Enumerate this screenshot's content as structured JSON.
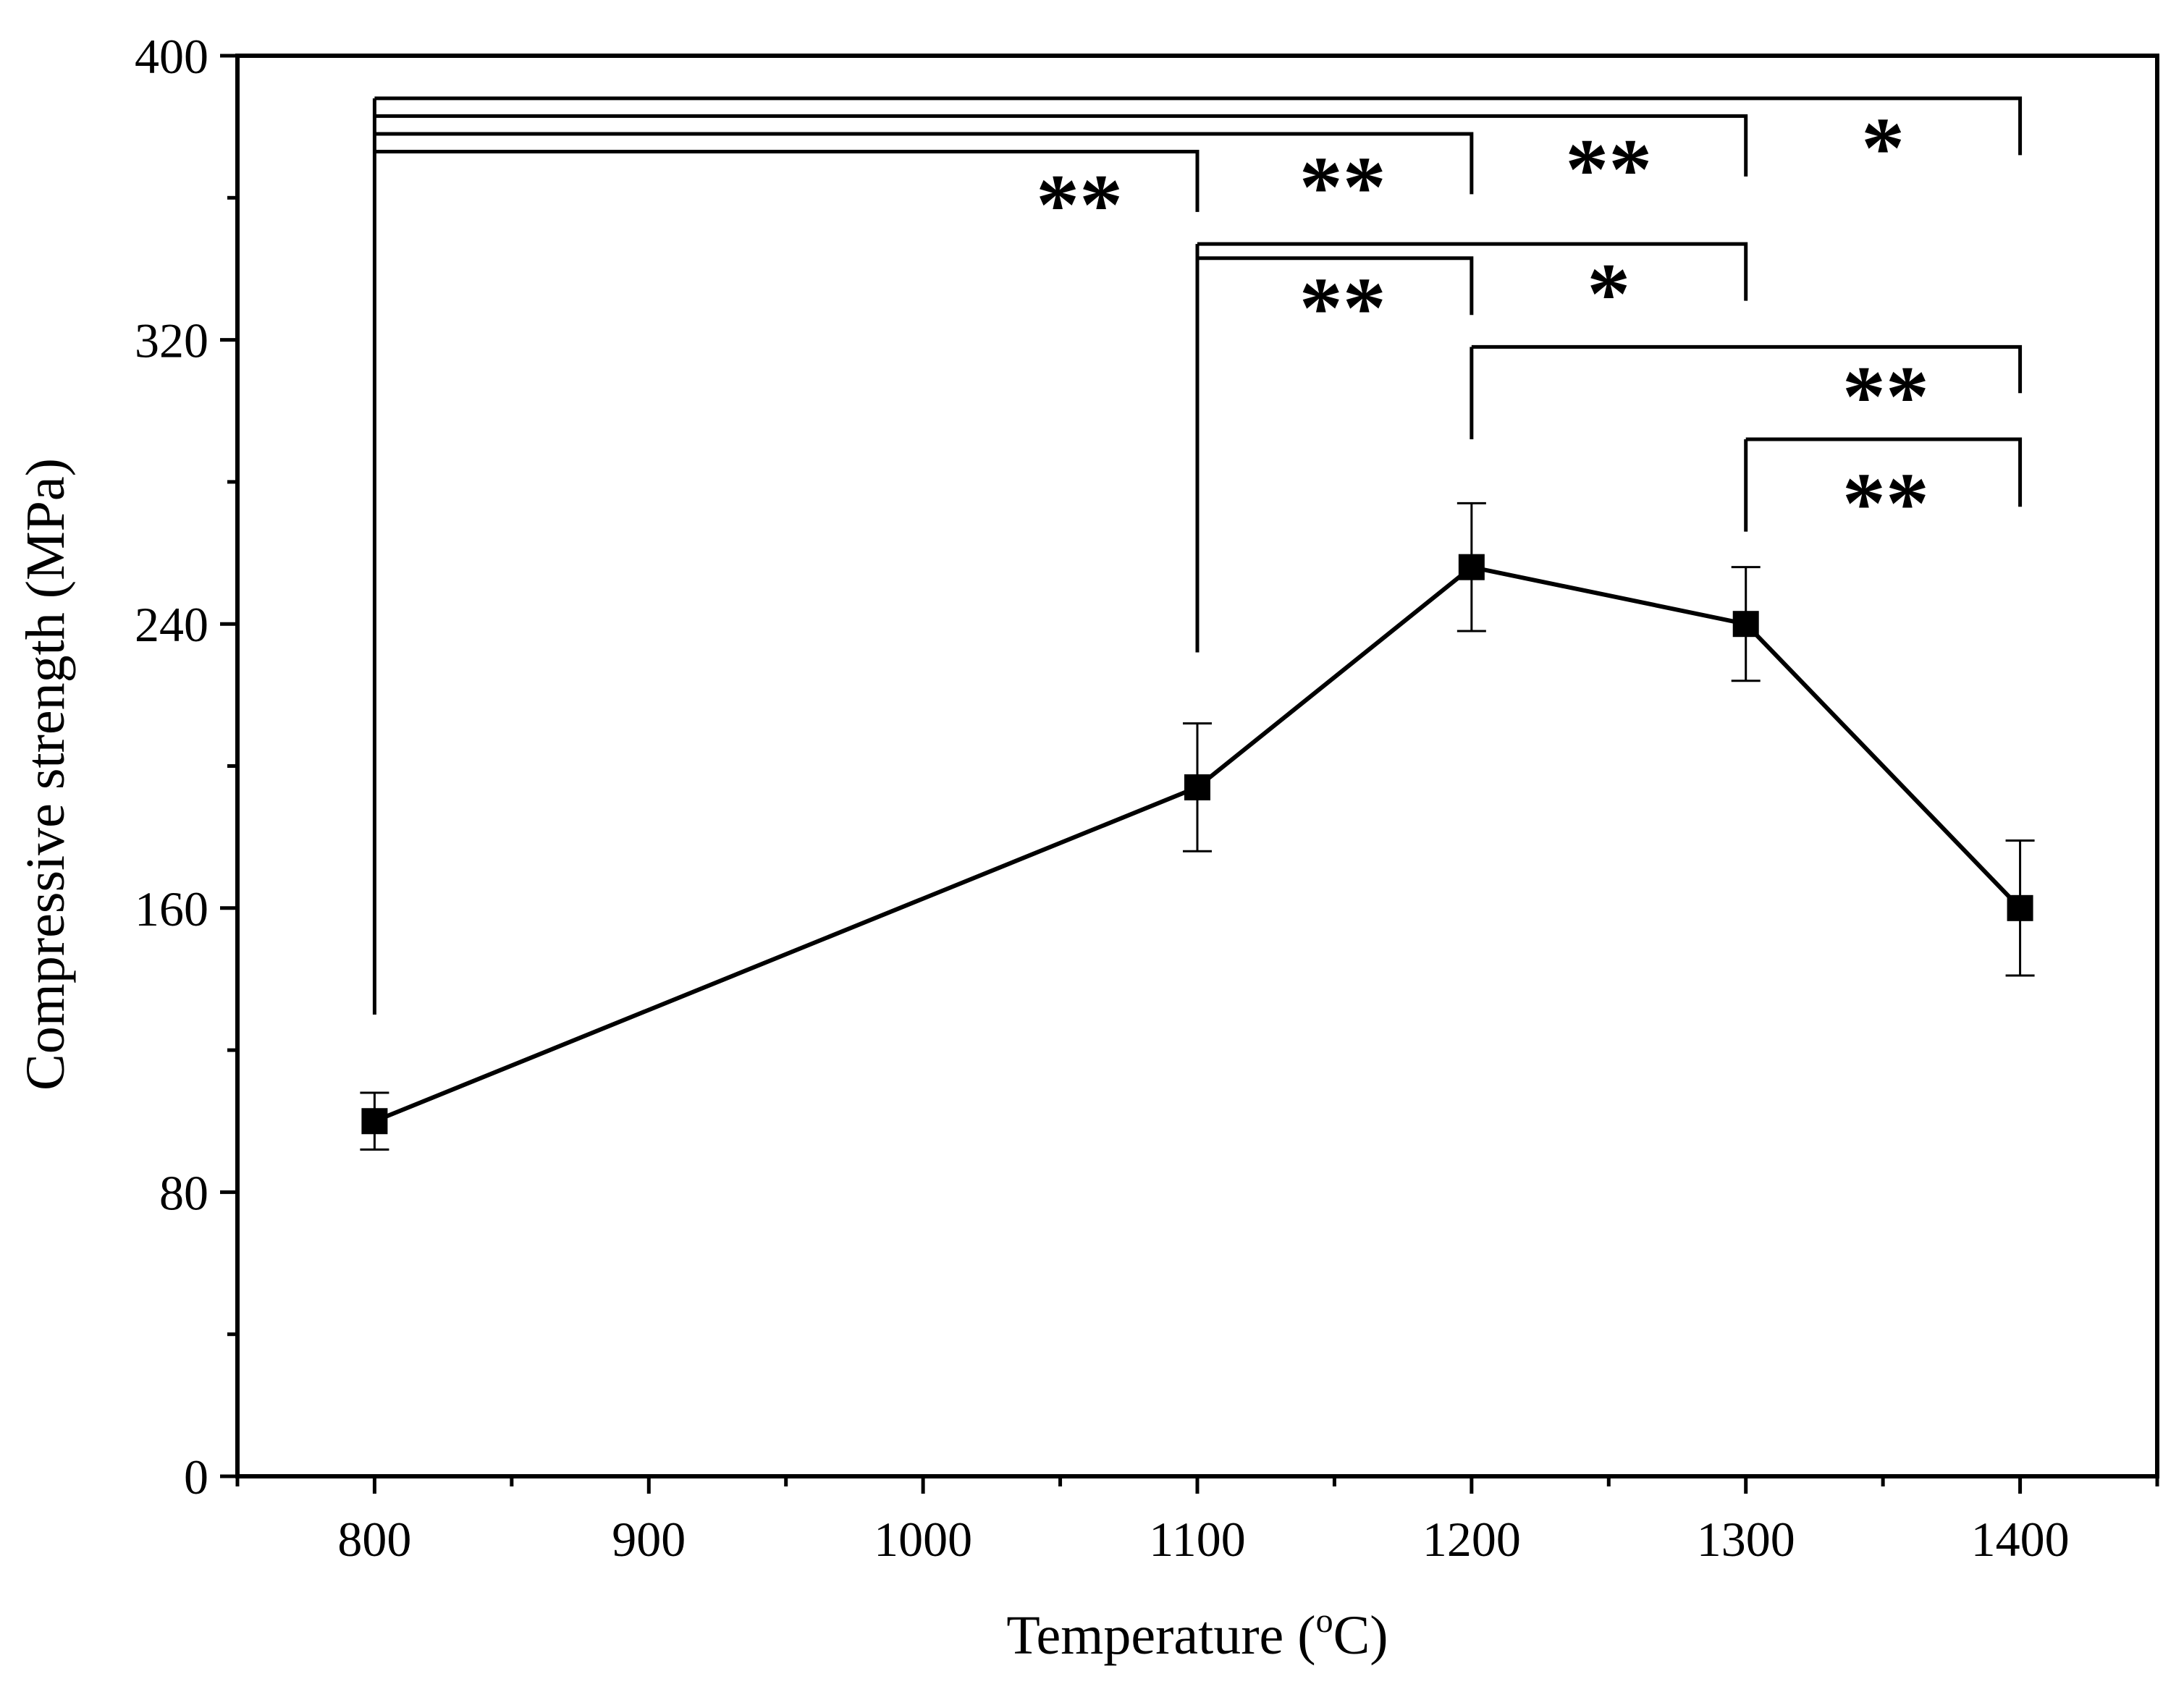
{
  "chart_data": {
    "type": "line",
    "title": "",
    "xlabel": "Temperature (",
    "xlabel_superscript": "o",
    "xlabel_suffix": "C)",
    "ylabel": "Compressive strength (MPa)",
    "xlim": [
      750,
      1450
    ],
    "ylim": [
      0,
      400
    ],
    "x_ticks": [
      800,
      900,
      1000,
      1100,
      1200,
      1300,
      1400
    ],
    "x_tick_labels": [
      "800",
      "900",
      "1000",
      "1100",
      "1200",
      "1300",
      "1400"
    ],
    "y_major_ticks": [
      0,
      80,
      160,
      240,
      320,
      400
    ],
    "y_tick_labels": [
      "0",
      "80",
      "160",
      "240",
      "320",
      "400"
    ],
    "y_minor_ticks": [
      40,
      120,
      200,
      280,
      360
    ],
    "series": [
      {
        "name": "Compressive strength",
        "marker": "square",
        "color": "#000000",
        "x": [
          800,
          1100,
          1200,
          1300,
          1400
        ],
        "y": [
          100,
          194,
          256,
          240,
          160
        ],
        "error": [
          8,
          18,
          18,
          16,
          19
        ]
      }
    ],
    "significance_brackets": [
      {
        "x1": 800,
        "x2": 1400,
        "y": 388,
        "drop_y": 372,
        "label": "*",
        "label_x": 1350,
        "label_y": 374
      },
      {
        "x1": 800,
        "x2": 1300,
        "y": 383,
        "drop_y": 366,
        "label": "**",
        "label_x": 1250,
        "label_y": 368
      },
      {
        "x1": 800,
        "x2": 1200,
        "y": 378,
        "drop_y": 361,
        "label": "**",
        "label_x": 1153,
        "label_y": 363
      },
      {
        "x1": 800,
        "x2": 1100,
        "y": 373,
        "drop_y": 356,
        "label": "**",
        "label_x": 1057,
        "label_y": 358
      },
      {
        "x1": 1100,
        "x2": 1300,
        "y": 347,
        "drop_y": 331,
        "label": "*",
        "label_x": 1250,
        "label_y": 333
      },
      {
        "x1": 1100,
        "x2": 1200,
        "y": 343,
        "drop_y": 327,
        "label": "**",
        "label_x": 1153,
        "label_y": 329
      },
      {
        "x1": 1200,
        "x2": 1400,
        "y": 318,
        "drop_y": 305,
        "label": "**",
        "label_x": 1351,
        "label_y": 304
      },
      {
        "x1": 1300,
        "x2": 1400,
        "y": 292,
        "drop_y": 273,
        "label": "**",
        "label_x": 1351,
        "label_y": 274
      }
    ],
    "bracket_left_ends": [
      {
        "x": 800,
        "bottom_y": 130
      },
      {
        "x": 1100,
        "bottom_y": 232
      },
      {
        "x": 1200,
        "bottom_y": 292
      },
      {
        "x": 1300,
        "bottom_y": 266
      }
    ]
  }
}
